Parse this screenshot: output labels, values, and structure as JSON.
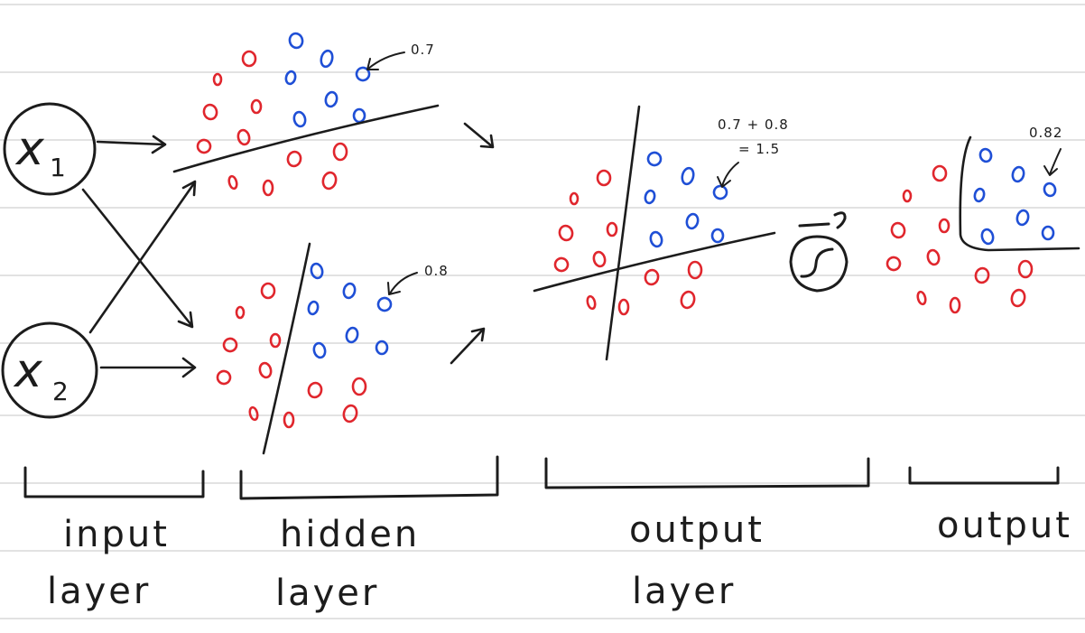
{
  "colors": {
    "paper": "#ffffff",
    "rule_lines": "#d9d9d9",
    "ink": "#1c1c1c",
    "class_a": "#e0262d",
    "class_b": "#1f4fd6"
  },
  "input_nodes": [
    {
      "var": "x",
      "subscript": "1"
    },
    {
      "var": "x",
      "subscript": "2"
    }
  ],
  "annotations": {
    "hidden_top": "0.7",
    "hidden_bottom": "0.8",
    "output_sum_line1": "0.7 + 0.8",
    "output_sum_line2": "= 1.5",
    "output_final": "0.82"
  },
  "icons": {
    "activation": "sigmoid-icon"
  },
  "captions": {
    "input": [
      "input",
      "layer"
    ],
    "hidden": [
      "hidden",
      "layer"
    ],
    "output_layer": [
      "output",
      "layer"
    ],
    "output": [
      "output"
    ]
  }
}
